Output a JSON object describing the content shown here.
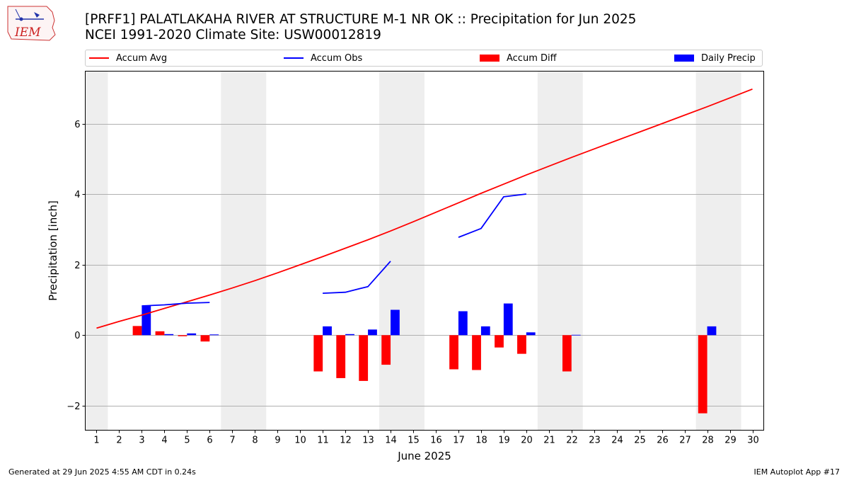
{
  "header": {
    "title_line1": "[PRFF1] PALATLAKAHA RIVER AT STRUCTURE M-1 NR OK :: Precipitation for Jun 2025",
    "title_line2": "NCEI 1991-2020 Climate Site: USW00012819"
  },
  "logo": {
    "text": "IEM"
  },
  "legend": {
    "items": [
      {
        "label": "Accum Avg",
        "kind": "line",
        "color": "#ff0000"
      },
      {
        "label": "Accum Obs",
        "kind": "line",
        "color": "#0000ff"
      },
      {
        "label": "Accum Diff",
        "kind": "box",
        "color": "#ff0000"
      },
      {
        "label": "Daily Precip",
        "kind": "box",
        "color": "#0000ff"
      }
    ]
  },
  "footer": {
    "left": "Generated at 29 Jun 2025 4:55 AM CDT in 0.24s",
    "right": "IEM Autoplot App #17"
  },
  "chart_data": {
    "type": "bar",
    "title": "[PRFF1] PALATLAKAHA RIVER AT STRUCTURE M-1 NR OK :: Precipitation for Jun 2025",
    "xlabel": "June 2025",
    "ylabel": "Precipitation [inch]",
    "xlim": [
      0.5,
      30.5
    ],
    "ylim": [
      -2.7,
      7.5
    ],
    "x_ticks": [
      1,
      2,
      3,
      4,
      5,
      6,
      7,
      8,
      9,
      10,
      11,
      12,
      13,
      14,
      15,
      16,
      17,
      18,
      19,
      20,
      21,
      22,
      23,
      24,
      25,
      26,
      27,
      28,
      29,
      30
    ],
    "y_ticks": [
      -2,
      0,
      2,
      4,
      6
    ],
    "y_tick_labels": [
      "−2",
      "0",
      "2",
      "4",
      "6"
    ],
    "grid": "horizontal",
    "weekend_shading": [
      [
        0.5,
        1.5
      ],
      [
        6.5,
        8.5
      ],
      [
        13.5,
        15.5
      ],
      [
        20.5,
        22.5
      ],
      [
        27.5,
        29.5
      ]
    ],
    "series": [
      {
        "name": "Accum Avg",
        "kind": "line",
        "color": "#ff0000",
        "x": [
          1,
          2,
          3,
          4,
          5,
          6,
          7,
          8,
          9,
          10,
          11,
          12,
          13,
          14,
          15,
          16,
          17,
          18,
          19,
          20,
          21,
          22,
          23,
          24,
          25,
          26,
          27,
          28,
          29,
          30
        ],
        "values": [
          0.2,
          0.39,
          0.57,
          0.76,
          0.95,
          1.14,
          1.34,
          1.55,
          1.77,
          2.0,
          2.23,
          2.47,
          2.71,
          2.96,
          3.22,
          3.49,
          3.76,
          4.03,
          4.29,
          4.55,
          4.8,
          5.05,
          5.29,
          5.53,
          5.77,
          6.01,
          6.25,
          6.49,
          6.74,
          6.99
        ]
      },
      {
        "name": "Accum Obs",
        "kind": "line",
        "color": "#0000ff",
        "x": [
          3,
          4,
          5,
          6,
          7,
          8,
          9,
          10,
          11,
          12,
          13,
          14,
          15,
          16,
          17,
          18,
          19,
          20
        ],
        "values": [
          0.83,
          0.86,
          0.91,
          0.93,
          null,
          null,
          null,
          null,
          1.19,
          1.22,
          1.38,
          2.1,
          null,
          null,
          2.78,
          3.03,
          3.93,
          4.01
        ]
      },
      {
        "name": "Accum Diff",
        "kind": "bar",
        "color": "#ff0000",
        "x": [
          3,
          4,
          5,
          6,
          11,
          12,
          13,
          14,
          17,
          18,
          19,
          20,
          22,
          28
        ],
        "values": [
          0.26,
          0.11,
          -0.03,
          -0.18,
          -1.03,
          -1.22,
          -1.3,
          -0.84,
          -0.97,
          -0.99,
          -0.35,
          -0.53,
          -1.03,
          -2.22
        ]
      },
      {
        "name": "Daily Precip",
        "kind": "bar",
        "color": "#0000ff",
        "x": [
          3,
          4,
          5,
          6,
          11,
          12,
          13,
          14,
          17,
          18,
          19,
          20,
          22,
          28
        ],
        "values": [
          0.83,
          0.03,
          0.05,
          0.02,
          0.25,
          0.03,
          0.16,
          0.72,
          0.68,
          0.25,
          0.9,
          0.08,
          0.01,
          0.25
        ]
      }
    ]
  }
}
